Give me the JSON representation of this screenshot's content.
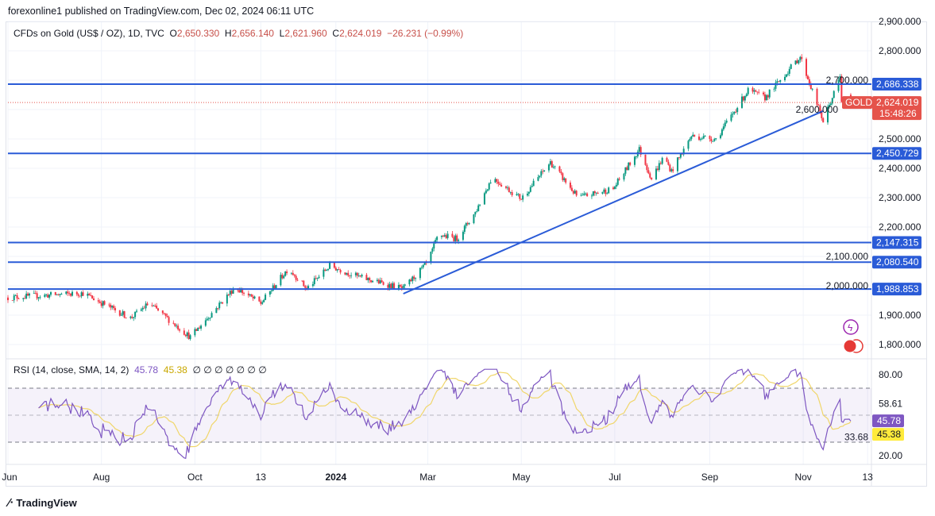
{
  "header": {
    "published": "forexonline1 published on TradingView.com, Dec 02, 2024 06:11 UTC"
  },
  "legend": {
    "symbol": "CFDs on Gold (US$ / OZ), 1D, TVC",
    "o_label": "O",
    "o": "2,650.330",
    "h_label": "H",
    "h": "2,656.140",
    "l_label": "L",
    "l": "2,621.960",
    "c_label": "C",
    "c": "2,624.019",
    "change": "−26.231 (−0.99%)"
  },
  "rsi_legend": {
    "label": "RSI (14, close, SMA, 14, 2)",
    "rsi": "45.78",
    "sma": "45.38",
    "hidden": "∅ ∅ ∅ ∅ ∅ ∅ ∅"
  },
  "footer": {
    "brand": "TradingView"
  },
  "colors": {
    "up": "#089981",
    "down": "#f23645",
    "level": "#2a5bd7",
    "rsi": "#7e57c2",
    "rsi_sma": "#f0d66a",
    "last": "#e5534b"
  },
  "chart_data": [
    {
      "type": "candlestick",
      "symbol_tag": "GOLD",
      "last_price": "2,624.019",
      "countdown": "15:48:26",
      "ylim": [
        1770,
        2910
      ],
      "y_ticks": [
        "2,900.000",
        "2,800.000",
        "2,700.000",
        "2,600.000",
        "2,500.000",
        "2,400.000",
        "2,300.000",
        "2,200.000",
        "2,100.000",
        "2,000.000",
        "1,900.000",
        "1,800.000"
      ],
      "x_ticks": [
        {
          "label": "Jun",
          "date": "2023-06-01"
        },
        {
          "label": "Aug",
          "date": "2023-08-01"
        },
        {
          "label": "Oct",
          "date": "2023-10-01"
        },
        {
          "label": "13",
          "date": "2023-11-13"
        },
        {
          "label": "2024",
          "date": "2024-01-01"
        },
        {
          "label": "Mar",
          "date": "2024-03-01"
        },
        {
          "label": "May",
          "date": "2024-05-01"
        },
        {
          "label": "Jul",
          "date": "2024-07-01"
        },
        {
          "label": "Sep",
          "date": "2024-09-01"
        },
        {
          "label": "Nov",
          "date": "2024-11-01"
        },
        {
          "label": "13",
          "date": "2024-12-13"
        }
      ],
      "horizontal_levels": [
        {
          "value": 2686.338,
          "label": "2,686.338"
        },
        {
          "value": 2450.729,
          "label": "2,450.729"
        },
        {
          "value": 2147.315,
          "label": "2,147.315"
        },
        {
          "value": 2080.54,
          "label": "2,080.540"
        },
        {
          "value": 1988.853,
          "label": "1,988.853"
        }
      ],
      "trendline": [
        {
          "date": "2024-02-14",
          "price": 1973
        },
        {
          "date": "2024-11-14",
          "price": 2595
        }
      ],
      "approx_closes": [
        [
          "2023-06-01",
          1960
        ],
        [
          "2023-07-20",
          1975
        ],
        [
          "2023-08-20",
          1890
        ],
        [
          "2023-09-01",
          1940
        ],
        [
          "2023-09-28",
          1825
        ],
        [
          "2023-10-27",
          1995
        ],
        [
          "2023-11-13",
          1940
        ],
        [
          "2023-12-01",
          2060
        ],
        [
          "2023-12-13",
          1990
        ],
        [
          "2023-12-28",
          2068
        ],
        [
          "2024-01-16",
          2030
        ],
        [
          "2024-02-14",
          1990
        ],
        [
          "2024-03-01",
          2080
        ],
        [
          "2024-03-08",
          2175
        ],
        [
          "2024-03-20",
          2160
        ],
        [
          "2024-04-01",
          2250
        ],
        [
          "2024-04-12",
          2370
        ],
        [
          "2024-04-22",
          2330
        ],
        [
          "2024-05-01",
          2297
        ],
        [
          "2024-05-20",
          2420
        ],
        [
          "2024-06-07",
          2300
        ],
        [
          "2024-06-30",
          2330
        ],
        [
          "2024-07-17",
          2465
        ],
        [
          "2024-07-25",
          2365
        ],
        [
          "2024-08-02",
          2440
        ],
        [
          "2024-08-07",
          2390
        ],
        [
          "2024-08-20",
          2510
        ],
        [
          "2024-09-05",
          2500
        ],
        [
          "2024-09-26",
          2665
        ],
        [
          "2024-10-07",
          2640
        ],
        [
          "2024-10-30",
          2780
        ],
        [
          "2024-11-14",
          2560
        ],
        [
          "2024-11-25",
          2710
        ],
        [
          "2024-11-26",
          2625
        ],
        [
          "2024-12-02",
          2624
        ]
      ]
    },
    {
      "type": "line",
      "title": "RSI (14, close, SMA, 14, 2)",
      "ylim": [
        15,
        85
      ],
      "bands": [
        30,
        70
      ],
      "y_ticks": [
        "80.00",
        "58.61",
        "33.68",
        "20.00"
      ],
      "last_rsi": 45.78,
      "last_sma": 45.38
    }
  ]
}
